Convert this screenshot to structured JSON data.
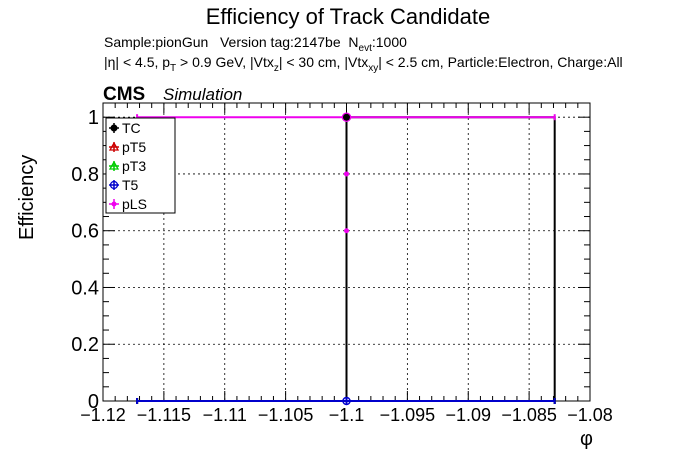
{
  "title": "Efficiency of Track Candidate",
  "info": {
    "sample_label": "Sample:pionGun",
    "version_label": "Version tag:2147be",
    "nevt_label": "N",
    "nevt_sub": "evt",
    "nevt_value": ":1000",
    "eta_cut": "|η| < 4.5, p",
    "pt_sub": "T",
    "pt_cut": " > 0.9 GeV, |Vtx",
    "vtxz_sub": "z",
    "vtxz_cut": "| < 30 cm, |Vtx",
    "vtxxy_sub": "xy",
    "rest": "| < 2.5 cm, Particle:Electron, Charge:All"
  },
  "cms_label": "CMS",
  "simulation_label": "Simulation",
  "chart_data": {
    "type": "line",
    "title": "Efficiency of Track Candidate",
    "xlabel": "φ",
    "ylabel": "Efficiency",
    "xlim": [
      -1.12,
      -1.08
    ],
    "ylim": [
      0,
      1.05
    ],
    "x_ticks": [
      -1.12,
      -1.115,
      -1.11,
      -1.105,
      -1.1,
      -1.095,
      -1.09,
      -1.085,
      -1.08
    ],
    "x_tick_labels": [
      "−1.12",
      "−1.115",
      "−1.11",
      "−1.105",
      "−1.1",
      "−1.095",
      "−1.09",
      "−1.085",
      "−1.08"
    ],
    "y_ticks": [
      0,
      0.2,
      0.4,
      0.6,
      0.8,
      1
    ],
    "y_tick_labels": [
      "0",
      "0.2",
      "0.4",
      "0.6",
      "0.8",
      "1"
    ],
    "grid": true,
    "legend_position": "top-left",
    "series": [
      {
        "name": "TC",
        "color": "#000000",
        "marker": "circle-filled",
        "x": [
          -1.1172,
          -1.1,
          -1.0829
        ],
        "y": [
          0,
          1,
          0
        ]
      },
      {
        "name": "pT5",
        "color": "#cc0000",
        "marker": "triangle-open",
        "x": [
          -1.1172,
          -1.1,
          -1.0829
        ],
        "y": [
          0,
          0,
          0
        ]
      },
      {
        "name": "pT3",
        "color": "#00cc00",
        "marker": "triangle-open",
        "x": [
          -1.1172,
          -1.1,
          -1.0829
        ],
        "y": [
          0,
          0,
          0
        ]
      },
      {
        "name": "T5",
        "color": "#0000cc",
        "marker": "circle-open",
        "x": [
          -1.1172,
          -1.1,
          -1.0829
        ],
        "y": [
          0,
          0,
          0
        ]
      },
      {
        "name": "pLS",
        "color": "#ee00ee",
        "marker": "star",
        "x": [
          -1.1172,
          -1.1,
          -1.0829
        ],
        "y": [
          1,
          1,
          1
        ]
      }
    ]
  }
}
